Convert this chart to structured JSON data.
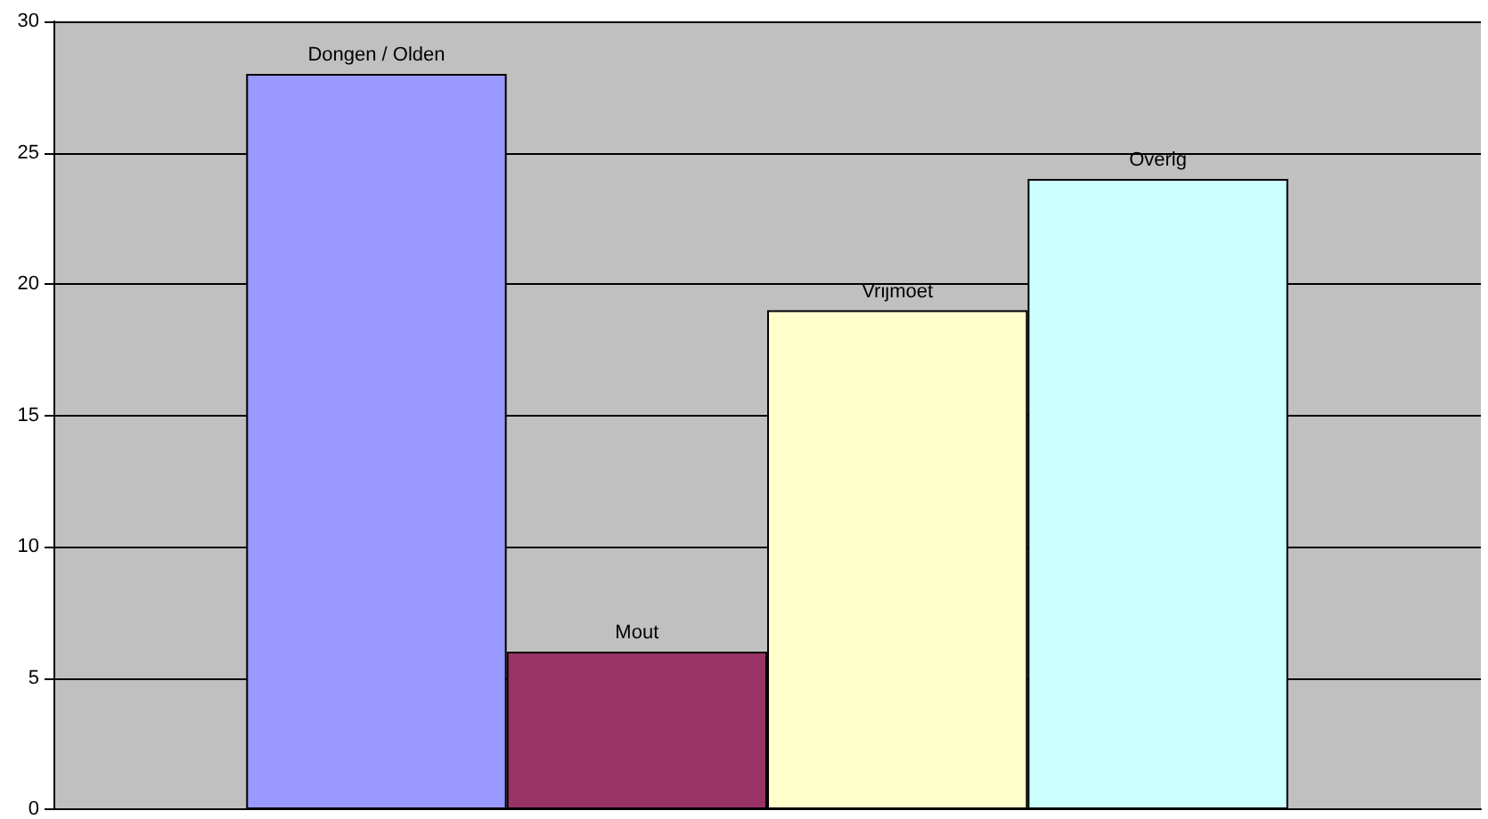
{
  "chart_data": {
    "type": "bar",
    "categories": [
      null
    ],
    "series": [
      {
        "name": "Dongen / Olden",
        "color": "#9999ff",
        "values": [
          28
        ]
      },
      {
        "name": "Mout",
        "color": "#993366",
        "values": [
          6
        ]
      },
      {
        "name": "Vrijmoet",
        "color": "#ffffcc",
        "values": [
          19
        ]
      },
      {
        "name": "Overig",
        "color": "#ccffff",
        "values": [
          24
        ]
      }
    ],
    "ylim": [
      0,
      30
    ],
    "yticks": [
      0,
      5,
      10,
      15,
      20,
      25,
      30
    ],
    "grid": "y",
    "tick_labels": "y"
  }
}
